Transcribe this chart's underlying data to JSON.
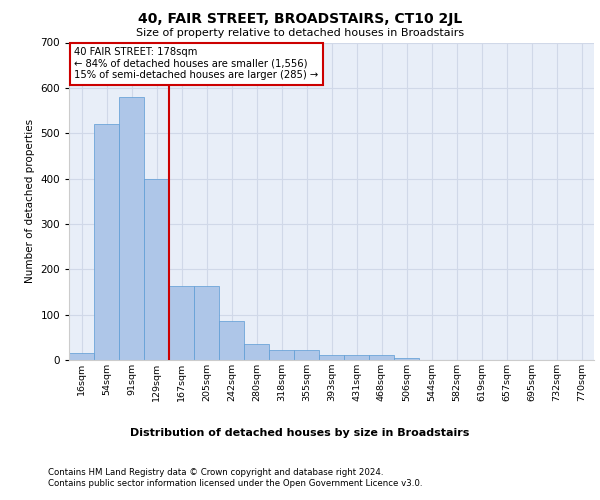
{
  "title": "40, FAIR STREET, BROADSTAIRS, CT10 2JL",
  "subtitle": "Size of property relative to detached houses in Broadstairs",
  "xlabel": "Distribution of detached houses by size in Broadstairs",
  "ylabel": "Number of detached properties",
  "categories": [
    "16sqm",
    "54sqm",
    "91sqm",
    "129sqm",
    "167sqm",
    "205sqm",
    "242sqm",
    "280sqm",
    "318sqm",
    "355sqm",
    "393sqm",
    "431sqm",
    "468sqm",
    "506sqm",
    "544sqm",
    "582sqm",
    "619sqm",
    "657sqm",
    "695sqm",
    "732sqm",
    "770sqm"
  ],
  "bar_heights": [
    15,
    520,
    580,
    400,
    163,
    163,
    85,
    35,
    22,
    22,
    10,
    12,
    12,
    5,
    0,
    0,
    0,
    0,
    0,
    0,
    0
  ],
  "bar_color": "#aec6e8",
  "bar_edge_color": "#5b9bd5",
  "grid_color": "#d0d8e8",
  "background_color": "#e8eef8",
  "ylim": [
    0,
    700
  ],
  "yticks": [
    0,
    100,
    200,
    300,
    400,
    500,
    600,
    700
  ],
  "property_line_x": 4.0,
  "property_line_color": "#cc0000",
  "annotation_text": "40 FAIR STREET: 178sqm\n← 84% of detached houses are smaller (1,556)\n15% of semi-detached houses are larger (285) →",
  "footer_line1": "Contains HM Land Registry data © Crown copyright and database right 2024.",
  "footer_line2": "Contains public sector information licensed under the Open Government Licence v3.0."
}
